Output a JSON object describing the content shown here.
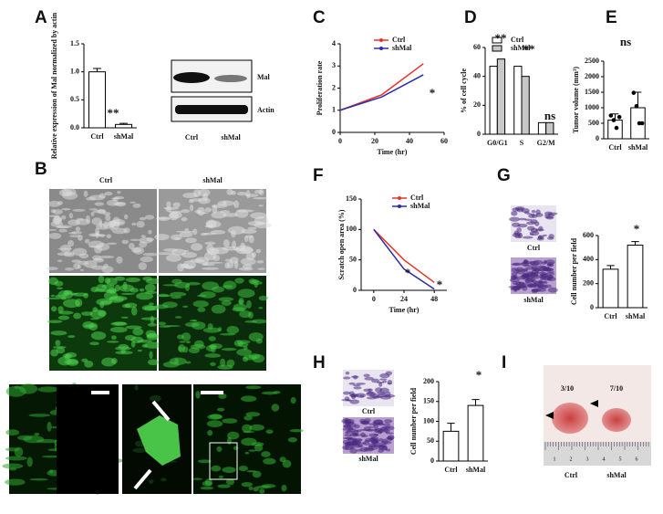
{
  "panel_letters": [
    "A",
    "B",
    "C",
    "D",
    "E",
    "F",
    "G",
    "H",
    "I"
  ],
  "blot": {
    "bands": [
      "Mal",
      "Actin"
    ],
    "lanes": [
      "Ctrl",
      "shMal"
    ]
  },
  "micrographs": {
    "columns": [
      "Ctrl",
      "shMal"
    ]
  },
  "panel_G_images": [
    "Ctrl",
    "shMal"
  ],
  "panel_H_images": [
    "Ctrl",
    "shMal"
  ],
  "panel_I": {
    "counts": [
      "3/10",
      "7/10"
    ],
    "labels": [
      "Ctrl",
      "shMal"
    ],
    "ruler": [
      1,
      2,
      3,
      4,
      5,
      6
    ]
  },
  "chart_data": [
    {
      "type": "bar",
      "ylabel": "Relative expression of Mal normalized by actin",
      "categories": [
        "Ctrl",
        "shMal"
      ],
      "series": [
        {
          "color": "#ffffff",
          "values": [
            1.0,
            0.06
          ],
          "errors": [
            0.06,
            0.02
          ]
        }
      ],
      "ylim": [
        0,
        1.5
      ],
      "yticks": [
        {
          "value": 0,
          "label": "0.0"
        },
        {
          "value": 0.5,
          "label": "0.5"
        },
        {
          "value": 1.0,
          "label": "1.0"
        },
        {
          "value": 1.5,
          "label": "1.5"
        }
      ],
      "annotations": [
        "**"
      ]
    },
    {
      "type": "line",
      "ylabel": "Proliferation rate",
      "xlabel": "Time (hr)",
      "x": [
        0,
        24,
        48
      ],
      "series": [
        {
          "name": "Ctrl",
          "color": "#e8332a",
          "values": [
            1,
            1.7,
            3.1
          ]
        },
        {
          "name": "shMal",
          "color": "#2a2ea8",
          "values": [
            1,
            1.6,
            2.6
          ]
        }
      ],
      "xlim": [
        0,
        60
      ],
      "xticks": [
        0,
        20,
        40,
        60
      ],
      "ylim": [
        0,
        4
      ],
      "yticks": [
        0,
        1,
        2,
        3,
        4
      ],
      "annotations": [
        "*"
      ]
    },
    {
      "type": "bar",
      "ylabel": "% of cell cycle",
      "categories": [
        "G0/G1",
        "S",
        "G2/M"
      ],
      "series": [
        {
          "name": "Ctrl",
          "color": "#ffffff",
          "values": [
            47,
            47,
            8
          ]
        },
        {
          "name": "shMal",
          "color": "#c8c8c8",
          "values": [
            52,
            40,
            8
          ]
        }
      ],
      "ylim": [
        0,
        60
      ],
      "yticks": [
        0,
        20,
        40,
        60
      ],
      "annotations": [
        "**",
        "**",
        "ns"
      ]
    },
    {
      "type": "bar",
      "ylabel": "Tumor volume (mm³)",
      "categories": [
        "Ctrl",
        "shMal"
      ],
      "series": [
        {
          "color": "#ffffff",
          "values": [
            600,
            1000
          ],
          "errors": [
            200,
            500
          ],
          "points": [
            [
              750,
              600,
              350,
              700
            ],
            [
              1480,
              1050,
              500,
              500
            ]
          ]
        }
      ],
      "ylim": [
        0,
        2500
      ],
      "yticks": [
        0,
        500,
        1000,
        1500,
        2000,
        2500
      ],
      "annotations": [
        "ns"
      ]
    },
    {
      "type": "line",
      "ylabel": "Scratch open area (%)",
      "xlabel": "Time (hr)",
      "x": [
        0,
        24,
        48
      ],
      "series": [
        {
          "name": "Ctrl",
          "color": "#e8332a",
          "values": [
            100,
            50,
            13
          ]
        },
        {
          "name": "shMal",
          "color": "#2a2ea8",
          "values": [
            100,
            35,
            2
          ]
        }
      ],
      "xlim": [
        -10,
        58
      ],
      "xticks": [
        0,
        24,
        48
      ],
      "ylim": [
        0,
        150
      ],
      "yticks": [
        0,
        50,
        100,
        150
      ],
      "annotations": [
        "*",
        "*"
      ]
    },
    {
      "type": "bar",
      "ylabel": "Cell number per field",
      "categories": [
        "Ctrl",
        "shMal"
      ],
      "series": [
        {
          "color": "#ffffff",
          "values": [
            320,
            520
          ],
          "errors": [
            30,
            30
          ]
        }
      ],
      "ylim": [
        0,
        600
      ],
      "yticks": [
        0,
        200,
        400,
        600
      ],
      "annotations": [
        "*"
      ]
    },
    {
      "type": "bar",
      "ylabel": "Cell number per field",
      "categories": [
        "Ctrl",
        "shMal"
      ],
      "series": [
        {
          "color": "#ffffff",
          "values": [
            75,
            140
          ],
          "errors": [
            20,
            15
          ]
        }
      ],
      "ylim": [
        0,
        200
      ],
      "yticks": [
        0,
        50,
        100,
        150,
        200
      ],
      "annotations": [
        "*"
      ]
    }
  ]
}
